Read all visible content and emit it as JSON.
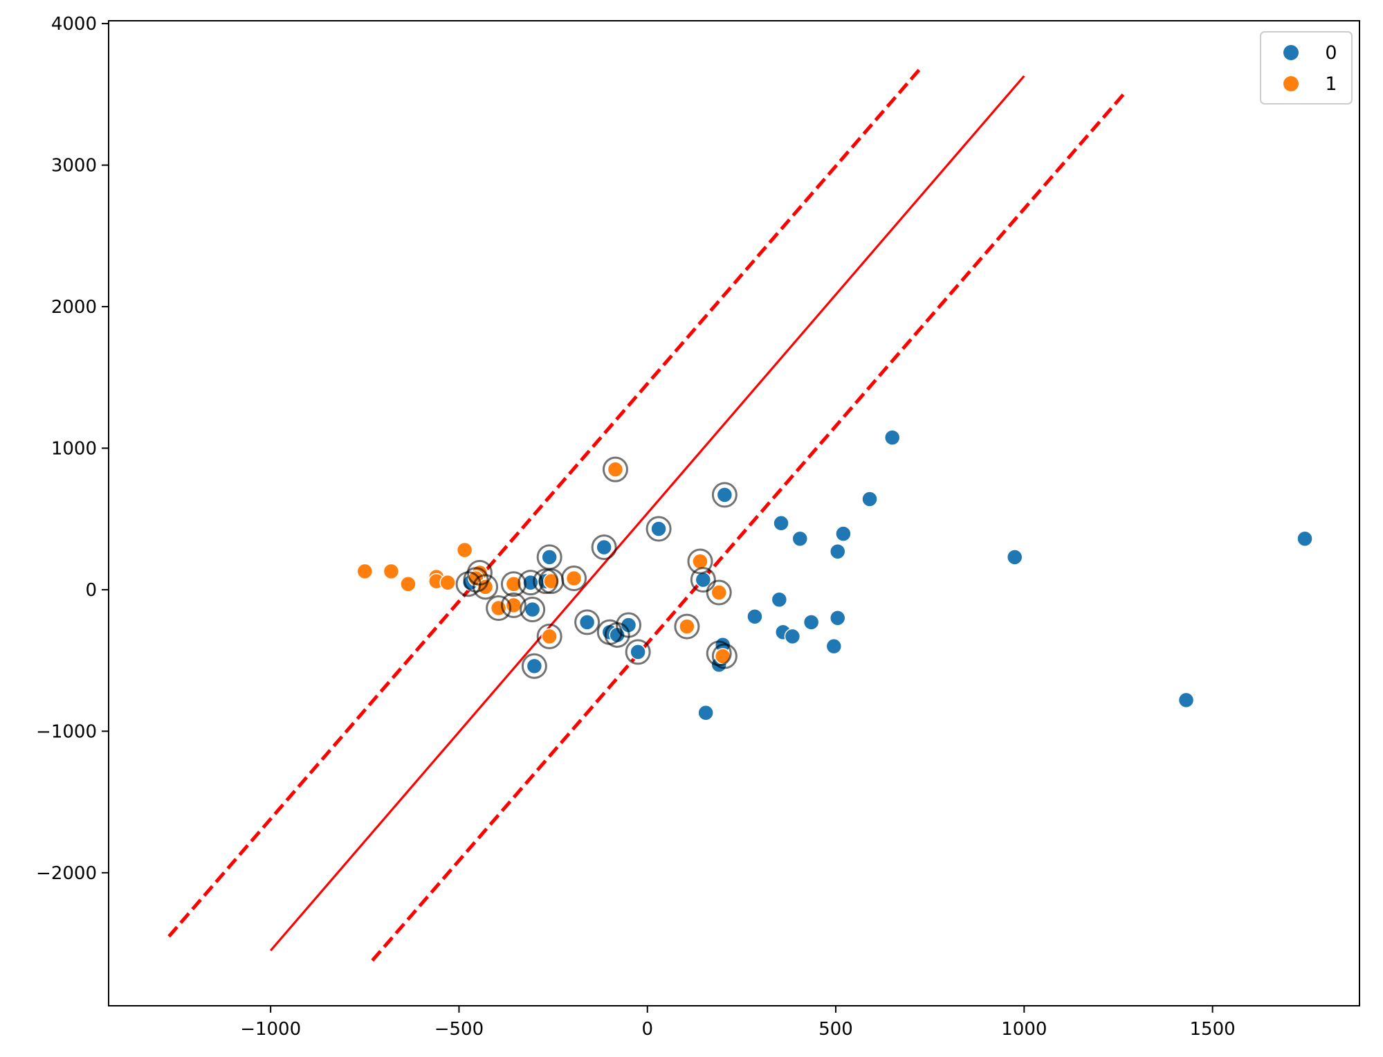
{
  "chart_data": {
    "type": "scatter",
    "title": "",
    "xlabel": "",
    "ylabel": "",
    "xlim": [
      -1430,
      1890
    ],
    "ylim": [
      -2940,
      4020
    ],
    "x_ticks": [
      -1000,
      -500,
      0,
      500,
      1000,
      1500
    ],
    "x_tick_labels": [
      "−1000",
      "−500",
      "0",
      "500",
      "1000",
      "1500"
    ],
    "y_ticks": [
      -2000,
      -1000,
      0,
      1000,
      2000,
      3000,
      4000
    ],
    "y_tick_labels": [
      "−2000",
      "−1000",
      "0",
      "1000",
      "2000",
      "3000",
      "4000"
    ],
    "grid": false,
    "legend": {
      "placement": "top-right",
      "entries": [
        {
          "label": "0",
          "color": "#1f77b4"
        },
        {
          "label": "1",
          "color": "#ff7f0e"
        }
      ]
    },
    "series": [
      {
        "name": "0",
        "color": "#1f77b4",
        "points": [
          [
            1745,
            360
          ],
          [
            975,
            230
          ],
          [
            1430,
            -780
          ],
          [
            650,
            1075
          ],
          [
            590,
            640
          ],
          [
            355,
            470
          ],
          [
            405,
            360
          ],
          [
            520,
            395
          ],
          [
            505,
            270
          ],
          [
            205,
            670
          ],
          [
            30,
            430
          ],
          [
            -115,
            300
          ],
          [
            -260,
            230
          ],
          [
            350,
            -70
          ],
          [
            285,
            -190
          ],
          [
            360,
            -300
          ],
          [
            385,
            -330
          ],
          [
            435,
            -230
          ],
          [
            505,
            -200
          ],
          [
            495,
            -400
          ],
          [
            200,
            -390
          ],
          [
            190,
            -530
          ],
          [
            155,
            -870
          ],
          [
            148,
            70
          ],
          [
            -160,
            -230
          ],
          [
            -100,
            -300
          ],
          [
            -80,
            -320
          ],
          [
            -50,
            -250
          ],
          [
            -25,
            -440
          ],
          [
            -300,
            -540
          ],
          [
            -305,
            -140
          ],
          [
            -310,
            50
          ],
          [
            -270,
            60
          ],
          [
            -470,
            50
          ]
        ]
      },
      {
        "name": "1",
        "color": "#ff7f0e",
        "points": [
          [
            -750,
            130
          ],
          [
            -680,
            130
          ],
          [
            -635,
            40
          ],
          [
            -560,
            90
          ],
          [
            -560,
            60
          ],
          [
            -530,
            50
          ],
          [
            -485,
            280
          ],
          [
            -445,
            120
          ],
          [
            -455,
            80
          ],
          [
            -430,
            20
          ],
          [
            -395,
            -130
          ],
          [
            -355,
            40
          ],
          [
            -355,
            -110
          ],
          [
            -260,
            -330
          ],
          [
            -255,
            60
          ],
          [
            -195,
            80
          ],
          [
            -85,
            850
          ],
          [
            140,
            200
          ],
          [
            105,
            -260
          ],
          [
            190,
            -20
          ],
          [
            200,
            -470
          ]
        ]
      }
    ],
    "support_vectors": [
      [
        -85,
        850
      ],
      [
        205,
        670
      ],
      [
        30,
        430
      ],
      [
        -115,
        300
      ],
      [
        -260,
        230
      ],
      [
        -445,
        120
      ],
      [
        -430,
        20
      ],
      [
        -455,
        70
      ],
      [
        -475,
        40
      ],
      [
        -355,
        40
      ],
      [
        -310,
        50
      ],
      [
        -270,
        60
      ],
      [
        -255,
        60
      ],
      [
        -195,
        80
      ],
      [
        -395,
        -130
      ],
      [
        -355,
        -110
      ],
      [
        -305,
        -140
      ],
      [
        -260,
        -330
      ],
      [
        -300,
        -540
      ],
      [
        -160,
        -230
      ],
      [
        -100,
        -300
      ],
      [
        -80,
        -320
      ],
      [
        -50,
        -250
      ],
      [
        -25,
        -440
      ],
      [
        140,
        200
      ],
      [
        148,
        70
      ],
      [
        105,
        -260
      ],
      [
        190,
        -20
      ],
      [
        190,
        -450
      ],
      [
        205,
        -470
      ]
    ],
    "lines": [
      {
        "style": "solid",
        "color": "#ff0000",
        "points": [
          [
            -1000,
            -2550
          ],
          [
            1000,
            3630
          ]
        ]
      },
      {
        "style": "dashed",
        "color": "#ff0000",
        "points": [
          [
            -1270,
            -2450
          ],
          [
            730,
            3700
          ]
        ]
      },
      {
        "style": "dashed",
        "color": "#ff0000",
        "points": [
          [
            -730,
            -2620
          ],
          [
            1270,
            3520
          ]
        ]
      }
    ]
  }
}
